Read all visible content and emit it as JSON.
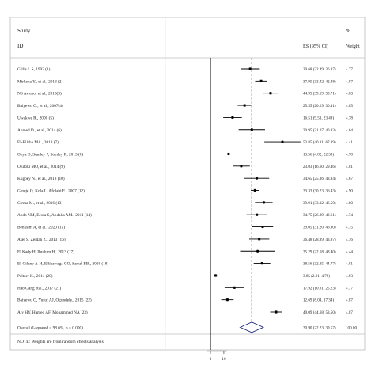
{
  "chart_data": {
    "type": "forest",
    "header": {
      "study_label": "Study",
      "id_label": "ID",
      "es_label": "ES (95% CI)",
      "weight_pct_label": "%",
      "weight_label": "Weight"
    },
    "studies": [
      {
        "id": "Gillis L.S, 1992 (1)",
        "es": 29.68,
        "lo": 22.49,
        "hi": 36.87,
        "es_text": "29.68 (22.49, 36.87)",
        "weight": "4.77"
      },
      {
        "id": "Mirkena Y., et al., 2018 (2)",
        "es": 37.95,
        "lo": 33.42,
        "hi": 42.48,
        "es_text": "37.95 (33.42, 42.48)",
        "weight": "4.87"
      },
      {
        "id": "NS Awunor et al., 2018(3)",
        "es": 44.95,
        "lo": 39.19,
        "hi": 50.71,
        "es_text": "44.95 (39.19, 50.71)",
        "weight": "4.83"
      },
      {
        "id": "Baiyewu O., et al., 2007(4)",
        "es": 25.55,
        "lo": 20.29,
        "hi": 30.41,
        "es_text": "25.55 (20.29, 30.41)",
        "weight": "4.85"
      },
      {
        "id": "Uwakwe R., 2000 (5)",
        "es": 16.51,
        "lo": 9.53,
        "hi": 23.49,
        "es_text": "16.51 (9.53, 23.49)",
        "weight": "4.78"
      },
      {
        "id": "Ahmed D., et al., 2014 (6)",
        "es": 30.95,
        "lo": 21.07,
        "hi": 40.83,
        "es_text": "30.95 (21.07, 40.83)",
        "weight": "4.64"
      },
      {
        "id": "El-Bilsha MA., 2018 (7)",
        "es": 53.85,
        "lo": 40.31,
        "hi": 67.39,
        "es_text": "53.85 (40.31, 67.39)",
        "weight": "4.41"
      },
      {
        "id": "Onya O, Stanley P, Stanley P., 2013 (8)",
        "es": 13.56,
        "lo": 4.82,
        "hi": 22.3,
        "es_text": "13.56 (4.82, 22.30)",
        "weight": "4.70"
      },
      {
        "id": "Olutoki MO, et al., 2014 (9)",
        "es": 23.03,
        "lo": 16.6,
        "hi": 29.46,
        "es_text": "23.03 (16.60, 29.46)",
        "weight": "4.81"
      },
      {
        "id": "Kugbey N., et al., 2018 (10)",
        "es": 34.65,
        "lo": 25.36,
        "hi": 43.94,
        "es_text": "34.65 (25.36, 43.94)",
        "weight": "4.67"
      },
      {
        "id": "Gureje O, Kola L, Afolabi E., 2007 (12)",
        "es": 33.33,
        "lo": 30.23,
        "hi": 36.43,
        "es_text": "33.33 (30.23, 36.43)",
        "weight": "4.90"
      },
      {
        "id": "Girma M., et al., 2016 (13)",
        "es": 39.91,
        "lo": 33.32,
        "hi": 46.5,
        "es_text": "39.91 (33.32, 46.50)",
        "weight": "4.80"
      },
      {
        "id": "Abdo NM, Eessa S, Abdalla AM., 2011 (14)",
        "es": 34.75,
        "lo": 26.89,
        "hi": 42.61,
        "es_text": "34.75 (26.89, 42.61)",
        "weight": "4.74"
      },
      {
        "id": "Benksim A, et al., 2020 (15)",
        "es": 39.05,
        "lo": 31.2,
        "hi": 46.9,
        "es_text": "39.05 (31.20, 46.90)",
        "weight": "4.75"
      },
      {
        "id": "Asel S, Zeidan Z., 2013 (16)",
        "es": 36.48,
        "lo": 28.99,
        "hi": 43.97,
        "es_text": "36.48 (28.99, 43.97)",
        "weight": "4.76"
      },
      {
        "id": "El Kady H, Ibrahim H., 2013 (17)",
        "es": 35.29,
        "lo": 22.18,
        "hi": 48.4,
        "es_text": "35.29 (22.18, 48.40)",
        "weight": "4.44"
      },
      {
        "id": "El-Gilany A-H, Elkhawaga GO, Sarraf BB., 2018 (18)",
        "es": 38.56,
        "lo": 32.35,
        "hi": 44.77,
        "es_text": "38.56 (32.35, 44.77)",
        "weight": "4.81"
      },
      {
        "id": "Peltzer K., 2014 (20)",
        "es": 3.85,
        "lo": 2.91,
        "hi": 4.79,
        "es_text": "3.85 (2.91, 4.79)",
        "weight": "4.93"
      },
      {
        "id": "Hao Gang etal., 2017 (21)",
        "es": 17.92,
        "lo": 10.61,
        "hi": 25.23,
        "es_text": "17.92 (10.61, 25.23)",
        "weight": "4.77"
      },
      {
        "id": "Baiyewu O, Yusuf AJ, Ogundele., 2015 (22)",
        "es": 12.69,
        "lo": 8.04,
        "hi": 17.34,
        "es_text": "12.69 (8.04, 17.34)",
        "weight": "4.87"
      },
      {
        "id": "Aly HY, Hamed AF, Mohammed NA (23)",
        "es": 49.09,
        "lo": 44.68,
        "hi": 53.5,
        "es_text": "49.09 (44.68, 53.50)",
        "weight": "4.87"
      }
    ],
    "overall": {
      "id": "Overall  (I-squared = 98.6%, p = 0.000)",
      "es": 30.9,
      "lo": 22.23,
      "hi": 39.57,
      "es_text": "30.90 (22.23, 39.57)",
      "weight": "100.00"
    },
    "note": "NOTE: Weights are from random effects analysis",
    "x_axis": {
      "ticks": [
        0,
        10
      ],
      "tick_labels": [
        "0",
        "10"
      ],
      "range": [
        0,
        70
      ],
      "null_line": 0
    },
    "colors": {
      "text": "#222222",
      "marker": "#000000",
      "ci": "#000000",
      "overall_line": "#c0392b",
      "frame": "#bbbbbb",
      "diamond": "#1a237e"
    }
  }
}
